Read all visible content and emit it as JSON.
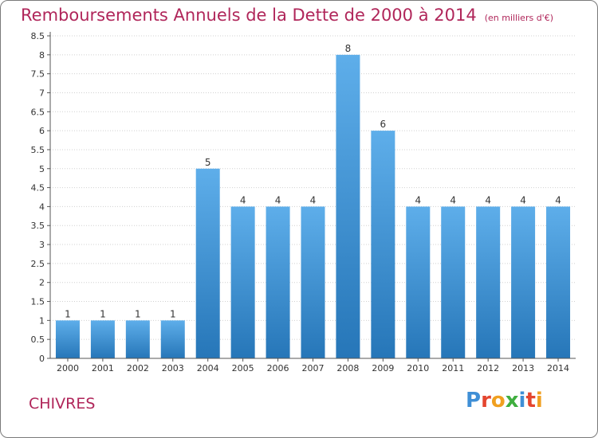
{
  "header": {
    "title": "Remboursements Annuels de la Dette de 2000 à 2014",
    "unit": "(en milliers d'€)"
  },
  "footer": {
    "commune": "CHIVRES",
    "logo_letters": [
      {
        "ch": "P",
        "color": "#3f8fd6"
      },
      {
        "ch": "r",
        "color": "#e4462f"
      },
      {
        "ch": "o",
        "color": "#f0a020"
      },
      {
        "ch": "x",
        "color": "#3fae3f"
      },
      {
        "ch": "i",
        "color": "#3f8fd6"
      },
      {
        "ch": "t",
        "color": "#e4462f"
      },
      {
        "ch": "i",
        "color": "#f0a020"
      }
    ]
  },
  "colors": {
    "bar_top": "#5eaeea",
    "bar_bottom": "#2676b8",
    "axis": "#555555",
    "grid": "#d0d0d0"
  },
  "chart_data": {
    "type": "bar",
    "title": "Remboursements Annuels de la Dette de 2000 à 2014",
    "subtitle": "(en milliers d'€)",
    "xlabel": "",
    "ylabel": "",
    "categories": [
      "2000",
      "2001",
      "2002",
      "2003",
      "2004",
      "2005",
      "2006",
      "2007",
      "2008",
      "2009",
      "2010",
      "2011",
      "2012",
      "2013",
      "2014"
    ],
    "values": [
      1,
      1,
      1,
      1,
      5,
      4,
      4,
      4,
      8,
      6,
      4,
      4,
      4,
      4,
      4
    ],
    "ylim": [
      0,
      8.5
    ],
    "yticks": [
      "0",
      "0.5",
      "1",
      "1.5",
      "2",
      "2.5",
      "3",
      "3.5",
      "4",
      "4.5",
      "5",
      "5.5",
      "6",
      "6.5",
      "7",
      "7.5",
      "8",
      "8.5"
    ],
    "grid": true,
    "legend": "none"
  }
}
